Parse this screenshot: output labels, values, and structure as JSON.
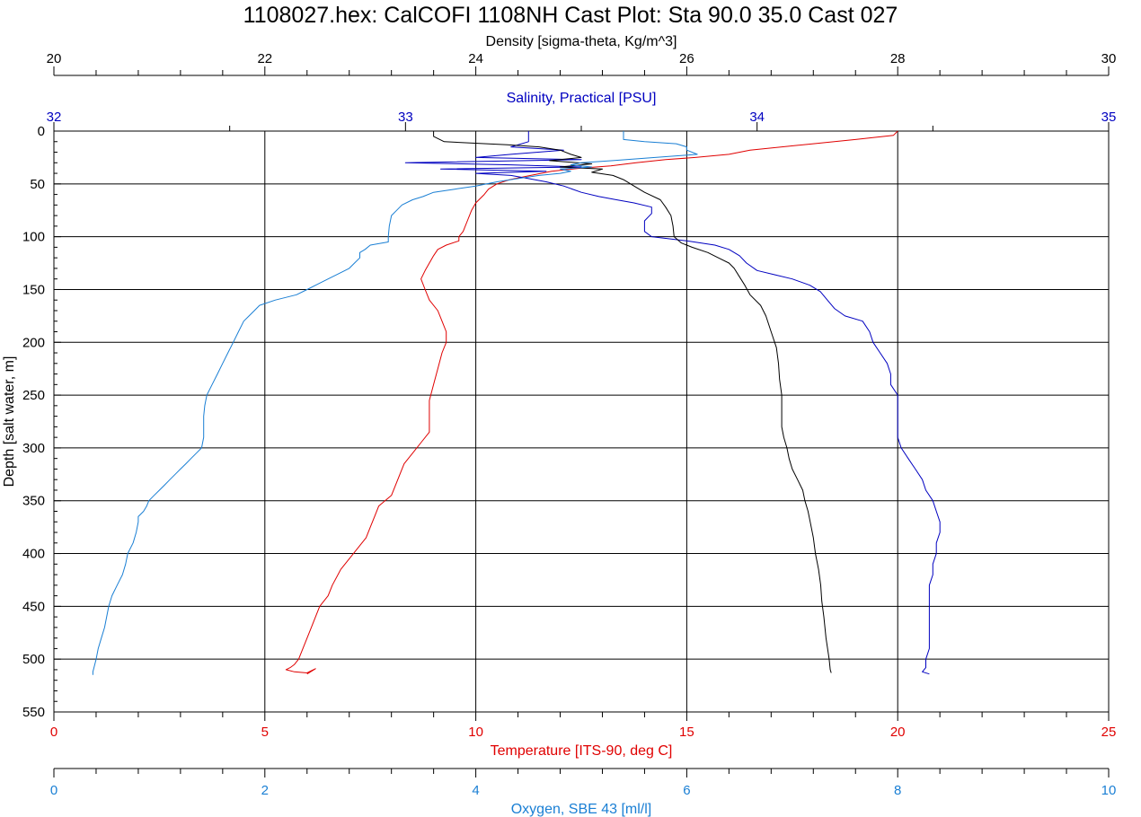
{
  "chart_data": {
    "type": "line",
    "title": "1108027.hex: CalCOFI 1108NH Cast Plot: Sta 90.0 35.0 Cast 027",
    "grid": true,
    "depth_axis": {
      "label": "Depth [salt water, m]",
      "range": [
        0,
        550
      ],
      "ticks": [
        "0",
        "50",
        "100",
        "150",
        "200",
        "250",
        "300",
        "350",
        "400",
        "450",
        "500",
        "550"
      ],
      "color": "#000000"
    },
    "x_axes": [
      {
        "key": "density",
        "label": "Density [sigma-theta, Kg/m^3]",
        "range": [
          20,
          30
        ],
        "ticks": [
          "20",
          "22",
          "24",
          "26",
          "28",
          "30"
        ],
        "position": "top",
        "color": "#000000"
      },
      {
        "key": "salinity",
        "label": "Salinity, Practical [PSU]",
        "range": [
          32,
          35
        ],
        "ticks": [
          "32",
          "33",
          "34",
          "35"
        ],
        "position": "top",
        "color": "#0000c0"
      },
      {
        "key": "temperature",
        "label": "Temperature [ITS-90, deg C]",
        "range": [
          0,
          25
        ],
        "ticks": [
          "0",
          "5",
          "10",
          "15",
          "20",
          "25"
        ],
        "position": "bottom",
        "color": "#e00000"
      },
      {
        "key": "oxygen",
        "label": "Oxygen, SBE 43 [ml/l]",
        "range": [
          0,
          10
        ],
        "ticks": [
          "0",
          "2",
          "4",
          "6",
          "8",
          "10"
        ],
        "position": "bottom",
        "color": "#1a7fd4"
      }
    ],
    "series": [
      {
        "axis": "temperature",
        "color": "#e00000",
        "points": [
          [
            20.0,
            0
          ],
          [
            19.9,
            4
          ],
          [
            19.0,
            8
          ],
          [
            18.0,
            12
          ],
          [
            16.5,
            18
          ],
          [
            16.0,
            22
          ],
          [
            15.2,
            25
          ],
          [
            14.5,
            27
          ],
          [
            13.8,
            30
          ],
          [
            13.2,
            33
          ],
          [
            12.5,
            35
          ],
          [
            11.8,
            38
          ],
          [
            11.3,
            42
          ],
          [
            10.8,
            46
          ],
          [
            10.5,
            50
          ],
          [
            10.3,
            55
          ],
          [
            10.2,
            60
          ],
          [
            10.0,
            68
          ],
          [
            9.9,
            75
          ],
          [
            9.8,
            85
          ],
          [
            9.7,
            95
          ],
          [
            9.6,
            100
          ],
          [
            9.6,
            104
          ],
          [
            9.3,
            108
          ],
          [
            9.1,
            112
          ],
          [
            9.0,
            118
          ],
          [
            8.9,
            125
          ],
          [
            8.8,
            132
          ],
          [
            8.7,
            140
          ],
          [
            8.8,
            150
          ],
          [
            8.9,
            160
          ],
          [
            9.1,
            170
          ],
          [
            9.2,
            180
          ],
          [
            9.3,
            190
          ],
          [
            9.3,
            200
          ],
          [
            9.2,
            210
          ],
          [
            9.1,
            225
          ],
          [
            9.0,
            240
          ],
          [
            8.9,
            255
          ],
          [
            8.9,
            270
          ],
          [
            8.9,
            285
          ],
          [
            8.7,
            295
          ],
          [
            8.5,
            305
          ],
          [
            8.3,
            315
          ],
          [
            8.2,
            325
          ],
          [
            8.1,
            335
          ],
          [
            8.0,
            345
          ],
          [
            7.7,
            355
          ],
          [
            7.6,
            365
          ],
          [
            7.5,
            375
          ],
          [
            7.4,
            385
          ],
          [
            7.2,
            395
          ],
          [
            7.0,
            405
          ],
          [
            6.8,
            415
          ],
          [
            6.6,
            430
          ],
          [
            6.5,
            440
          ],
          [
            6.3,
            450
          ],
          [
            6.2,
            460
          ],
          [
            6.1,
            470
          ],
          [
            6.0,
            480
          ],
          [
            5.9,
            490
          ],
          [
            5.8,
            500
          ],
          [
            5.7,
            505
          ],
          [
            5.6,
            508
          ],
          [
            5.5,
            510
          ],
          [
            5.7,
            512
          ],
          [
            6.0,
            513
          ],
          [
            6.1,
            511
          ],
          [
            6.2,
            509
          ],
          [
            6.0,
            514
          ]
        ]
      },
      {
        "axis": "salinity",
        "color": "#0000c0",
        "points": [
          [
            33.35,
            0
          ],
          [
            33.35,
            10
          ],
          [
            33.3,
            15
          ],
          [
            33.45,
            18
          ],
          [
            33.3,
            22
          ],
          [
            33.2,
            25
          ],
          [
            33.5,
            27
          ],
          [
            33.0,
            30
          ],
          [
            33.3,
            32
          ],
          [
            33.5,
            34
          ],
          [
            33.1,
            36
          ],
          [
            33.4,
            38
          ],
          [
            33.2,
            40
          ],
          [
            33.3,
            42
          ],
          [
            33.35,
            45
          ],
          [
            33.4,
            48
          ],
          [
            33.45,
            52
          ],
          [
            33.5,
            58
          ],
          [
            33.55,
            62
          ],
          [
            33.6,
            65
          ],
          [
            33.65,
            68
          ],
          [
            33.7,
            72
          ],
          [
            33.7,
            78
          ],
          [
            33.68,
            85
          ],
          [
            33.68,
            95
          ],
          [
            33.7,
            100
          ],
          [
            33.8,
            104
          ],
          [
            33.88,
            108
          ],
          [
            33.92,
            112
          ],
          [
            33.95,
            118
          ],
          [
            33.97,
            125
          ],
          [
            34.0,
            132
          ],
          [
            34.05,
            136
          ],
          [
            34.1,
            140
          ],
          [
            34.15,
            146
          ],
          [
            34.18,
            152
          ],
          [
            34.2,
            160
          ],
          [
            34.22,
            168
          ],
          [
            34.25,
            175
          ],
          [
            34.3,
            180
          ],
          [
            34.32,
            190
          ],
          [
            34.33,
            200
          ],
          [
            34.35,
            210
          ],
          [
            34.37,
            220
          ],
          [
            34.38,
            230
          ],
          [
            34.38,
            240
          ],
          [
            34.4,
            250
          ],
          [
            34.4,
            260
          ],
          [
            34.4,
            270
          ],
          [
            34.4,
            280
          ],
          [
            34.4,
            290
          ],
          [
            34.41,
            300
          ],
          [
            34.43,
            310
          ],
          [
            34.45,
            320
          ],
          [
            34.47,
            330
          ],
          [
            34.48,
            340
          ],
          [
            34.5,
            350
          ],
          [
            34.51,
            360
          ],
          [
            34.52,
            370
          ],
          [
            34.52,
            380
          ],
          [
            34.51,
            390
          ],
          [
            34.51,
            400
          ],
          [
            34.5,
            410
          ],
          [
            34.5,
            420
          ],
          [
            34.49,
            430
          ],
          [
            34.49,
            440
          ],
          [
            34.49,
            450
          ],
          [
            34.49,
            460
          ],
          [
            34.49,
            470
          ],
          [
            34.49,
            480
          ],
          [
            34.49,
            490
          ],
          [
            34.48,
            500
          ],
          [
            34.48,
            508
          ],
          [
            34.47,
            512
          ],
          [
            34.49,
            514
          ]
        ]
      },
      {
        "axis": "density",
        "color": "#000000",
        "points": [
          [
            23.6,
            0
          ],
          [
            23.6,
            5
          ],
          [
            23.7,
            10
          ],
          [
            24.3,
            13
          ],
          [
            24.6,
            15
          ],
          [
            24.8,
            18
          ],
          [
            24.9,
            22
          ],
          [
            25.0,
            25
          ],
          [
            24.7,
            28
          ],
          [
            25.1,
            31
          ],
          [
            24.8,
            34
          ],
          [
            25.2,
            36
          ],
          [
            25.1,
            39
          ],
          [
            25.3,
            42
          ],
          [
            25.4,
            46
          ],
          [
            25.5,
            52
          ],
          [
            25.6,
            58
          ],
          [
            25.75,
            65
          ],
          [
            25.8,
            72
          ],
          [
            25.85,
            80
          ],
          [
            25.87,
            90
          ],
          [
            25.88,
            100
          ],
          [
            25.95,
            106
          ],
          [
            26.05,
            110
          ],
          [
            26.2,
            115
          ],
          [
            26.3,
            120
          ],
          [
            26.4,
            125
          ],
          [
            26.45,
            130
          ],
          [
            26.5,
            138
          ],
          [
            26.55,
            146
          ],
          [
            26.6,
            155
          ],
          [
            26.7,
            165
          ],
          [
            26.75,
            175
          ],
          [
            26.8,
            190
          ],
          [
            26.85,
            205
          ],
          [
            26.87,
            220
          ],
          [
            26.88,
            235
          ],
          [
            26.9,
            250
          ],
          [
            26.9,
            265
          ],
          [
            26.9,
            280
          ],
          [
            26.92,
            290
          ],
          [
            26.95,
            300
          ],
          [
            26.97,
            310
          ],
          [
            27.0,
            320
          ],
          [
            27.05,
            330
          ],
          [
            27.1,
            340
          ],
          [
            27.12,
            350
          ],
          [
            27.15,
            360
          ],
          [
            27.17,
            370
          ],
          [
            27.2,
            385
          ],
          [
            27.22,
            400
          ],
          [
            27.25,
            415
          ],
          [
            27.27,
            430
          ],
          [
            27.28,
            445
          ],
          [
            27.3,
            460
          ],
          [
            27.32,
            480
          ],
          [
            27.35,
            500
          ],
          [
            27.36,
            510
          ],
          [
            27.37,
            513
          ]
        ]
      },
      {
        "axis": "oxygen",
        "color": "#1a7fd4",
        "points": [
          [
            5.4,
            0
          ],
          [
            5.4,
            8
          ],
          [
            5.6,
            10
          ],
          [
            5.9,
            12
          ],
          [
            6.0,
            15
          ],
          [
            6.0,
            18
          ],
          [
            6.1,
            22
          ],
          [
            5.7,
            25
          ],
          [
            5.3,
            28
          ],
          [
            5.0,
            30
          ],
          [
            4.9,
            32
          ],
          [
            5.1,
            34
          ],
          [
            4.8,
            36
          ],
          [
            4.9,
            38
          ],
          [
            4.8,
            40
          ],
          [
            4.6,
            42
          ],
          [
            4.4,
            45
          ],
          [
            4.2,
            48
          ],
          [
            4.0,
            52
          ],
          [
            3.8,
            55
          ],
          [
            3.6,
            58
          ],
          [
            3.5,
            62
          ],
          [
            3.4,
            65
          ],
          [
            3.3,
            70
          ],
          [
            3.25,
            75
          ],
          [
            3.2,
            80
          ],
          [
            3.18,
            90
          ],
          [
            3.17,
            100
          ],
          [
            3.17,
            105
          ],
          [
            3.0,
            108
          ],
          [
            2.95,
            112
          ],
          [
            2.9,
            115
          ],
          [
            2.9,
            120
          ],
          [
            2.85,
            125
          ],
          [
            2.8,
            130
          ],
          [
            2.7,
            135
          ],
          [
            2.6,
            140
          ],
          [
            2.5,
            145
          ],
          [
            2.4,
            150
          ],
          [
            2.3,
            155
          ],
          [
            2.1,
            160
          ],
          [
            1.95,
            165
          ],
          [
            1.9,
            170
          ],
          [
            1.85,
            175
          ],
          [
            1.8,
            180
          ],
          [
            1.75,
            190
          ],
          [
            1.7,
            200
          ],
          [
            1.65,
            210
          ],
          [
            1.6,
            220
          ],
          [
            1.55,
            230
          ],
          [
            1.5,
            240
          ],
          [
            1.45,
            250
          ],
          [
            1.43,
            260
          ],
          [
            1.42,
            270
          ],
          [
            1.42,
            280
          ],
          [
            1.42,
            290
          ],
          [
            1.4,
            300
          ],
          [
            1.35,
            305
          ],
          [
            1.3,
            310
          ],
          [
            1.25,
            315
          ],
          [
            1.2,
            320
          ],
          [
            1.15,
            325
          ],
          [
            1.1,
            330
          ],
          [
            1.05,
            335
          ],
          [
            1.0,
            340
          ],
          [
            0.95,
            345
          ],
          [
            0.9,
            350
          ],
          [
            0.88,
            355
          ],
          [
            0.85,
            360
          ],
          [
            0.8,
            365
          ],
          [
            0.8,
            370
          ],
          [
            0.78,
            380
          ],
          [
            0.75,
            390
          ],
          [
            0.7,
            400
          ],
          [
            0.68,
            410
          ],
          [
            0.65,
            420
          ],
          [
            0.6,
            430
          ],
          [
            0.55,
            440
          ],
          [
            0.52,
            450
          ],
          [
            0.5,
            460
          ],
          [
            0.48,
            470
          ],
          [
            0.45,
            480
          ],
          [
            0.42,
            490
          ],
          [
            0.4,
            500
          ],
          [
            0.38,
            508
          ],
          [
            0.37,
            512
          ],
          [
            0.37,
            515
          ]
        ]
      }
    ]
  }
}
